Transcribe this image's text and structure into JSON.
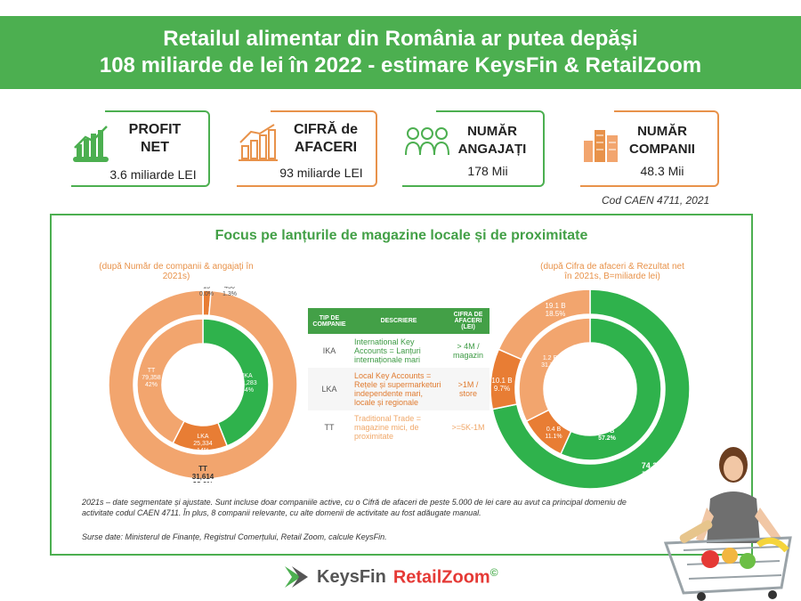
{
  "header": {
    "line1": "Retailul alimentar din România ar putea depăși",
    "line2": "108 miliarde de lei în 2022 - estimare KeysFin & RetailZoom"
  },
  "kpis": [
    {
      "title_l1": "PROFIT",
      "title_l2": "NET",
      "value": "3.6 miliarde LEI",
      "color": "#4caf50",
      "icon": "money-growth-icon"
    },
    {
      "title_l1": "CIFRĂ de",
      "title_l2": "AFACERI",
      "value": "93 miliarde LEI",
      "color": "#e8924a",
      "icon": "bar-growth-icon"
    },
    {
      "title_l1": "NUMĂR",
      "title_l2": "ANGAJAȚI",
      "value": "178 Mii",
      "color": "#4caf50",
      "icon": "employees-icon"
    },
    {
      "title_l1": "NUMĂR",
      "title_l2": "COMPANII",
      "value": "48.3 Mii",
      "color": "#e8924a",
      "icon": "buildings-icon"
    }
  ],
  "caen_note": "Cod CAEN 4711, 2021",
  "panel": {
    "title": "Focus pe lanțurile de magazine locale și de proximitate",
    "left_sub": "(după Număr de companii & angajați în 2021s)",
    "right_sub_l1": "(după Cifra de afaceri & Rezultat net",
    "right_sub_l2": "în 2021s, B=miliarde lei)",
    "note_l1": "2021s – date segmentate și ajustate. Sunt incluse doar companiile active, cu o Cifră de afaceri de peste 5.000 de lei care au avut ca principal domeniu de",
    "note_l2": "activitate codul CAEN 4711. În plus, 8 companii relevante, cu alte domenii de activitate au fost adăugate manual.",
    "source": "Surse date: Ministerul de Finanțe, Registrul Comerțului, Retail Zoom, calcule KeysFin."
  },
  "table": {
    "headers": [
      "TIP DE COMPANIE",
      "DESCRIERE",
      "CIFRA DE AFACERI (LEI)"
    ],
    "rows": [
      {
        "type": "IKA",
        "desc": "International Key Accounts = Lanțuri internaționale mari",
        "ca": "> 4M / magazin"
      },
      {
        "type": "LKA",
        "desc": "Local Key Accounts = Rețele și supermarketuri independente mari, locale și regionale",
        "ca": ">1M / store"
      },
      {
        "type": "TT",
        "desc": "Traditional Trade = magazine mici, de proximitate",
        "ca": ">=5K-1M"
      }
    ]
  },
  "chart_data": [
    {
      "type": "pie",
      "subtitle": "(după Număr de companii & angajați în 2021s)",
      "outer_ring": {
        "name": "Număr de companii",
        "slices": [
          {
            "label": "IKA",
            "value": 13,
            "pct": "0.0%"
          },
          {
            "label": "LKA",
            "value": 430,
            "pct": "1.3%"
          },
          {
            "label": "TT",
            "value": 31614,
            "pct": "98.6%"
          }
        ]
      },
      "inner_ring": {
        "name": "Angajați",
        "slices": [
          {
            "label": "IKA",
            "value": 82283,
            "pct": "44%"
          },
          {
            "label": "LKA",
            "value": 25334,
            "pct": "14%"
          },
          {
            "label": "TT",
            "value": 79358,
            "pct": "42%"
          }
        ]
      },
      "labels": {
        "ika_outer": [
          "IKA",
          "13",
          "0.0%"
        ],
        "lka_outer": [
          "LKA",
          "430",
          "1.3%"
        ],
        "tt_outer": [
          "TT",
          "31,614",
          "98.6%"
        ],
        "ika_inner": [
          "IKA",
          "82,283",
          "44%"
        ],
        "lka_inner": [
          "LKA",
          "25,334",
          "14%"
        ],
        "tt_inner": [
          "TT",
          "79,358",
          "42%"
        ]
      }
    },
    {
      "type": "pie",
      "subtitle": "(după Cifra de afaceri & Rezultat net în 2021s, B=miliarde lei)",
      "outer_ring": {
        "name": "Cifra de afaceri",
        "slices": [
          {
            "label": "IKA",
            "value": 74.2,
            "pct": "71.8%"
          },
          {
            "label": "LKA",
            "value": 10.1,
            "pct": "9.7%"
          },
          {
            "label": "TT",
            "value": 19.1,
            "pct": "18.5%"
          }
        ]
      },
      "inner_ring": {
        "name": "Rezultat net",
        "slices": [
          {
            "label": "IKA",
            "value": 2.1,
            "pct": "57.2%"
          },
          {
            "label": "LKA",
            "value": 0.4,
            "pct": "11.1%"
          },
          {
            "label": "TT",
            "value": 1.2,
            "pct": "31.7%"
          }
        ]
      },
      "labels": {
        "ika_outer": [
          "74.2 B",
          "71.8%"
        ],
        "lka_outer": [
          "10.1 B",
          "9.7%"
        ],
        "tt_outer": [
          "19.1 B",
          "18.5%"
        ],
        "ika_inner": [
          "2.1 B",
          "57.2%"
        ],
        "lka_inner": [
          "0.4 B",
          "11.1%"
        ],
        "tt_inner": [
          "1.2 B",
          "31.7%"
        ]
      }
    }
  ],
  "colors": {
    "ika": "#2fb24c",
    "lka": "#e87d34",
    "tt": "#f2a56e",
    "accent": "#4caf50"
  },
  "logo": {
    "keysfin": "KeysFin",
    "retailzoom": "RetailZoom",
    "mark": "©"
  }
}
